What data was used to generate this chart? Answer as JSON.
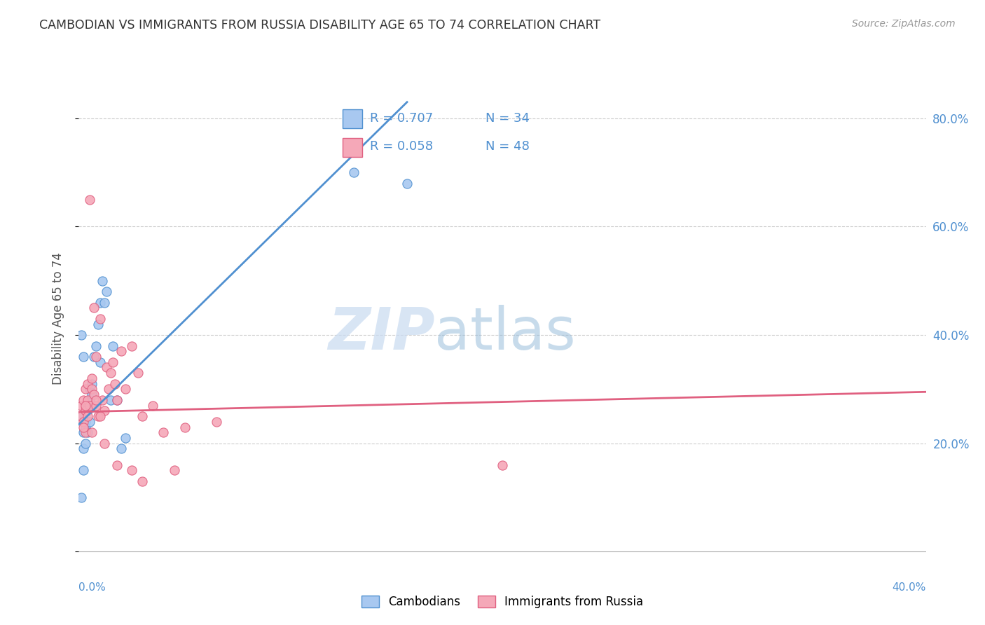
{
  "title": "CAMBODIAN VS IMMIGRANTS FROM RUSSIA DISABILITY AGE 65 TO 74 CORRELATION CHART",
  "source": "Source: ZipAtlas.com",
  "ylabel": "Disability Age 65 to 74",
  "y_ticks": [
    0.0,
    0.2,
    0.4,
    0.6,
    0.8
  ],
  "y_tick_labels": [
    "",
    "20.0%",
    "40.0%",
    "60.0%",
    "80.0%"
  ],
  "x_lim": [
    0.0,
    0.4
  ],
  "y_lim": [
    -0.02,
    0.88
  ],
  "legend_r_cambodian": "R = 0.707",
  "legend_n_cambodian": "N = 34",
  "legend_r_russia": "R = 0.058",
  "legend_n_russia": "N = 48",
  "label_cambodian": "Cambodians",
  "label_russia": "Immigrants from Russia",
  "color_cambodian": "#a8c8f0",
  "color_russia": "#f5a8b8",
  "color_line_cambodian": "#5090d0",
  "color_line_russia": "#e06080",
  "color_text_blue": "#5090d0",
  "watermark_zip": "ZIP",
  "watermark_atlas": "atlas",
  "cambodian_x": [
    0.001,
    0.002,
    0.002,
    0.003,
    0.003,
    0.004,
    0.004,
    0.005,
    0.005,
    0.006,
    0.006,
    0.007,
    0.008,
    0.009,
    0.01,
    0.01,
    0.011,
    0.012,
    0.013,
    0.015,
    0.016,
    0.018,
    0.02,
    0.022,
    0.001,
    0.002,
    0.003,
    0.003,
    0.004,
    0.005,
    0.13,
    0.155,
    0.001,
    0.002
  ],
  "cambodian_y": [
    0.25,
    0.19,
    0.22,
    0.24,
    0.2,
    0.26,
    0.27,
    0.28,
    0.3,
    0.29,
    0.31,
    0.36,
    0.38,
    0.42,
    0.46,
    0.35,
    0.5,
    0.46,
    0.48,
    0.28,
    0.38,
    0.28,
    0.19,
    0.21,
    0.4,
    0.36,
    0.26,
    0.23,
    0.22,
    0.24,
    0.7,
    0.68,
    0.1,
    0.15
  ],
  "russia_x": [
    0.001,
    0.001,
    0.002,
    0.002,
    0.003,
    0.003,
    0.003,
    0.004,
    0.004,
    0.005,
    0.005,
    0.006,
    0.006,
    0.007,
    0.007,
    0.008,
    0.008,
    0.009,
    0.01,
    0.011,
    0.012,
    0.013,
    0.014,
    0.015,
    0.016,
    0.017,
    0.018,
    0.02,
    0.022,
    0.025,
    0.028,
    0.03,
    0.035,
    0.04,
    0.045,
    0.002,
    0.004,
    0.006,
    0.008,
    0.01,
    0.012,
    0.018,
    0.025,
    0.03,
    0.05,
    0.065,
    0.2,
    0.003
  ],
  "russia_y": [
    0.25,
    0.27,
    0.24,
    0.28,
    0.26,
    0.22,
    0.3,
    0.28,
    0.31,
    0.27,
    0.65,
    0.32,
    0.3,
    0.29,
    0.45,
    0.27,
    0.36,
    0.25,
    0.43,
    0.28,
    0.26,
    0.34,
    0.3,
    0.33,
    0.35,
    0.31,
    0.28,
    0.37,
    0.3,
    0.38,
    0.33,
    0.25,
    0.27,
    0.22,
    0.15,
    0.23,
    0.25,
    0.22,
    0.28,
    0.25,
    0.2,
    0.16,
    0.15,
    0.13,
    0.23,
    0.24,
    0.16,
    0.27
  ],
  "camb_line_x0": 0.0,
  "camb_line_y0": 0.235,
  "camb_line_x1": 0.155,
  "camb_line_y1": 0.83,
  "russia_line_x0": 0.0,
  "russia_line_y0": 0.258,
  "russia_line_x1": 0.4,
  "russia_line_y1": 0.295
}
